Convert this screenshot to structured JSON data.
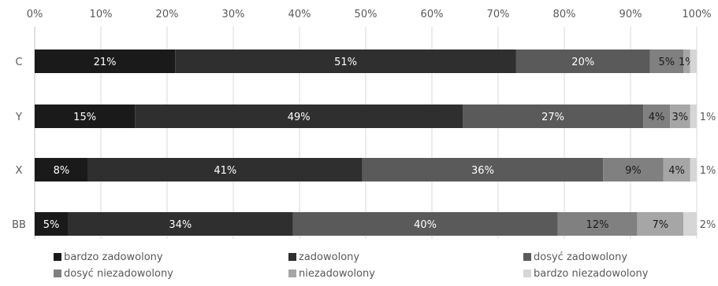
{
  "chart_data": {
    "type": "bar",
    "orientation": "horizontal",
    "stacked": "percent",
    "categories": [
      "C",
      "Y",
      "X",
      "BB"
    ],
    "series": [
      {
        "name": "bardzo zadowolony",
        "color": "#1a1a1a",
        "label_color": "#ffffff",
        "values": [
          21,
          15,
          8,
          5
        ],
        "labels": [
          "21%",
          "15%",
          "8%",
          "5%"
        ]
      },
      {
        "name": "zadowolony",
        "color": "#2f2f2f",
        "label_color": "#ffffff",
        "values": [
          51,
          49,
          41,
          34
        ],
        "labels": [
          "51%",
          "49%",
          "41%",
          "34%"
        ]
      },
      {
        "name": "dosyć zadowolony",
        "color": "#5a5a5a",
        "label_color": "#ffffff",
        "values": [
          20,
          27,
          36,
          40
        ],
        "labels": [
          "20%",
          "27%",
          "36%",
          "40%"
        ]
      },
      {
        "name": "dosyć niezadowolony",
        "color": "#808080",
        "label_color": "#1a1a1a",
        "values": [
          5,
          4,
          9,
          12
        ],
        "labels": [
          "5%",
          "4%",
          "9%",
          "12%"
        ]
      },
      {
        "name": "niezadowolony",
        "color": "#a6a6a6",
        "label_color": "#1a1a1a",
        "values": [
          1,
          3,
          4,
          7
        ],
        "labels": [
          "1%",
          "3%",
          "4%",
          "7%"
        ]
      },
      {
        "name": "bardzo niezadowolony",
        "color": "#d6d6d6",
        "label_color": "#404040",
        "values": [
          1,
          1,
          1,
          2
        ],
        "labels": [
          "",
          "1%",
          "1%",
          "2%"
        ]
      }
    ],
    "x_ticks": [
      "0%",
      "10%",
      "20%",
      "30%",
      "40%",
      "50%",
      "60%",
      "70%",
      "80%",
      "90%",
      "100%"
    ],
    "xlim": [
      0,
      100
    ],
    "grid": "vertical",
    "legend_position": "bottom"
  }
}
